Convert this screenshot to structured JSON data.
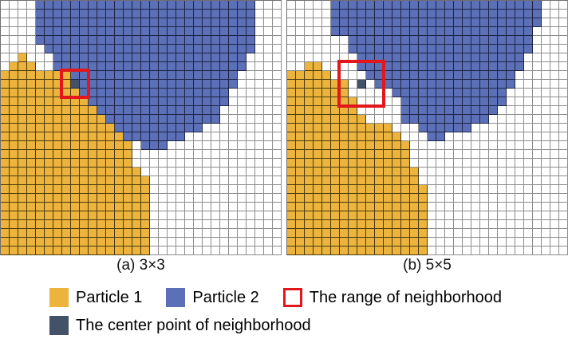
{
  "figure": {
    "colors": {
      "particle1": "#ecb43c",
      "particle2": "#5c70b8",
      "center": "#435169",
      "range": "#e2171c",
      "empty": "#ffffff"
    },
    "cell_legend": {
      "W": "empty",
      "Y": "particle1",
      "B": "particle2",
      "D": "center"
    },
    "panels": [
      {
        "id": "a",
        "caption": "(a) 3×3",
        "neighborhood_size": "3×3",
        "range_box": {
          "col": 7,
          "row": 8,
          "span": 3
        },
        "center_point": {
          "col": 8,
          "row": 9
        },
        "grid": {
          "cols": 32,
          "rows": 29,
          "rows_map": [
            "WWWWBBBBBBBBBBBBBBBBBBBBBBBBBWWW",
            "WWWWBBBBBBBBBBBBBBBBBBBBBBBBBWWW",
            "WWWWBBBBBBBBBBBBBBBBBBBBBBBBBWWW",
            "WWWWBBBBBBBBBBBBBBBBBBBBBBBBBWWW",
            "WWWWBBBBBBBBBBBBBBBBBBBBBBBBBWWW",
            "WWWWWBBBBBBBBBBBBBBBBBBBBBBBBWWW",
            "WWYWWWBBBBBBBBBBBBBBBBBBBBBBWWWW",
            "WYYYWWBBBBBBBBBBBBBBBBBBBBBBWWWW",
            "YYYYYYYYBBBBBBBBBBBBBBBBBBBWWWWW",
            "YYYYYYYYDBBBBBBBBBBBBBBBBBBWWWWW",
            "YYYYYYYYYBBBBBBBBBBBBBBBBBWWWWWW",
            "YYYYYYYYYYBBBBBBBBBBBBBBBBWWWWWW",
            "YYYYYYYYYYYBBBBBBBBBBBBBBWWWWWWW",
            "YYYYYYYYYYYYBBBBBBBBBBBBBWWWWWWW",
            "YYYYYYYYYYYYYBBBBBBBBBBWWWWWWWWW",
            "YYYYYYYYYYYYYYBBBBBBBWWWWWWWWWWW",
            "YYYYYYYYYYYYYYYWBBBWWWWWWWWWWWWW",
            "YYYYYYYYYYYYYYYWWWWWWWWWWWWWWWWW",
            "YYYYYYYYYYYYYYYWWWWWWWWWWWWWWWWW",
            "YYYYYYYYYYYYYYYYWWWWWWWWWWWWWWWW",
            "YYYYYYYYYYYYYYYYYWWWWWWWWWWWWWWW",
            "YYYYYYYYYYYYYYYYYWWWWWWWWWWWWWWW",
            "YYYYYYYYYYYYYYYYYWWWWWWWWWWWWWWW",
            "YYYYYYYYYYYYYYYYYWWWWWWWWWWWWWWW",
            "YYYYYYYYYYYYYYYYYWWWWWWWWWWWWWWW",
            "YYYYYYYYYYYYYYYYYWWWWWWWWWWWWWWW",
            "YYYYYYYYYYYYYYYYYWWWWWWWWWWWWWWW",
            "YYYYYYYYYYYYYYYYYWWWWWWWWWWWWWWW",
            "YYYYYYYYYYYYYYYYYWWWWWWWWWWWWWWW"
          ]
        }
      },
      {
        "id": "b",
        "caption": "(b) 5×5",
        "neighborhood_size": "5×5",
        "range_box": {
          "col": 6,
          "row": 7,
          "span": 5
        },
        "center_point": {
          "col": 8,
          "row": 9
        },
        "grid": {
          "cols": 32,
          "rows": 29,
          "rows_map": [
            "WWWWWBBBBBBBBBBBBBBBBBBBBBBBBWWW",
            "WWWWWBBBBBBBBBBBBBBBBBBBBBBBBWWW",
            "WWWWWBBBBBBBBBBBBBBBBBBBBBBBBWWW",
            "WWWWWBBBBBBBBBBBBBBBBBBBBBBBWWWW",
            "WWWWWWWBBBBBBBBBBBBBBBBBBBBBWWWW",
            "WWWWWWWBBBBBBBBBBBBBBBBBBBBBWWWW",
            "WWWWWWWWBBBBBBBBBBBBBBBBBBBWWWWW",
            "WWYYWWWWBBBBBBBBBBBBBBBBBBBWWWWW",
            "YYYYYWWWWBBBBBBBBBBBBBBBBBWWWWWW",
            "YYYYYYYWDWBBBBBBBBBBBBBBBBWWWWWW",
            "YYYYYYYWWWWWBBBBBBBBBBBBBWWWWWWW",
            "YYYYYYYYWWWWWBBBBBBBBBBBBWWWWWWW",
            "YYYYYYYYWWWWWBBBBBBBBBBBWWWWWWWW",
            "YYYYYYYYYWWWWBBBBBBBBBBWWWWWWWWW",
            "YYYYYYYYYYYYWWWBBBBBBWWWWWWWWWWW",
            "YYYYYYYYYYYYYWWWBBWWWWWWWWWWWWWW",
            "YYYYYYYYYYYYYYWWWWWWWWWWWWWWWWWW",
            "YYYYYYYYYYYYYYWWWWWWWWWWWWWWWWWW",
            "YYYYYYYYYYYYYYWWWWWWWWWWWWWWWWWW",
            "YYYYYYYYYYYYYYYWWWWWWWWWWWWWWWWW",
            "YYYYYYYYYYYYYYYWWWWWWWWWWWWWWWWW",
            "YYYYYYYYYYYYYYYYWWWWWWWWWWWWWWWW",
            "YYYYYYYYYYYYYYYYWWWWWWWWWWWWWWWW",
            "YYYYYYYYYYYYYYYYWWWWWWWWWWWWWWWW",
            "YYYYYYYYYYYYYYYYWWWWWWWWWWWWWWWW",
            "YYYYYYYYYYYYYYYYWWWWWWWWWWWWWWWW",
            "YYYYYYYYYYYYYYYYWWWWWWWWWWWWWWWW",
            "YYYYYYYYYYYYYYYYWWWWWWWWWWWWWWWW",
            "YYYYYYYYYYYYYYYYWWWWWWWWWWWWWWWW"
          ]
        }
      }
    ],
    "legend": [
      {
        "key": "particle1",
        "label": "Particle 1"
      },
      {
        "key": "particle2",
        "label": "Particle 2"
      },
      {
        "key": "range",
        "label": "The range of neighborhood"
      },
      {
        "key": "center",
        "label": "The center point of neighborhood"
      }
    ]
  }
}
